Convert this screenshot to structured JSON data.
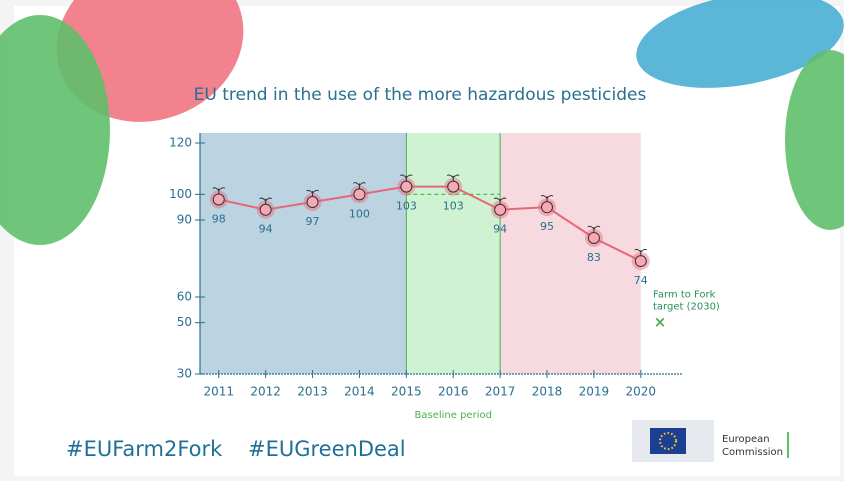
{
  "chart_data": {
    "type": "line",
    "title": "EU trend in the use of the more hazardous pesticides",
    "x": [
      2011,
      2012,
      2013,
      2014,
      2015,
      2016,
      2017,
      2018,
      2019,
      2020
    ],
    "xlim": [
      2010.6,
      2020.9
    ],
    "xticks": [
      2011,
      2012,
      2013,
      2014,
      2015,
      2016,
      2017,
      2018,
      2019,
      2020
    ],
    "ylim": [
      30,
      120
    ],
    "yticks": [
      30,
      50,
      60,
      90,
      100,
      120
    ],
    "series": [
      {
        "color": "#e8657a",
        "values": [
          98,
          94,
          97,
          100,
          103,
          103,
          94,
          95,
          83,
          74
        ]
      }
    ],
    "regions": [
      {
        "from": 2010.6,
        "to": 2015,
        "color": "#bcd4e2"
      },
      {
        "from": 2015,
        "to": 2017,
        "color": "#cff3d2"
      },
      {
        "from": 2017,
        "to": 2020,
        "color": "#f7dadf"
      }
    ],
    "baseline": {
      "label": "Baseline period",
      "from": 2015,
      "to": 2017,
      "value": 100
    },
    "target": {
      "lines": [
        "Farm to Fork",
        "target (2030)"
      ],
      "value": 50
    }
  },
  "footer": {
    "hashtags": [
      "#EUFarm2Fork",
      "#EUGreenDeal"
    ],
    "logo_lines": [
      "European",
      "Commission"
    ]
  }
}
